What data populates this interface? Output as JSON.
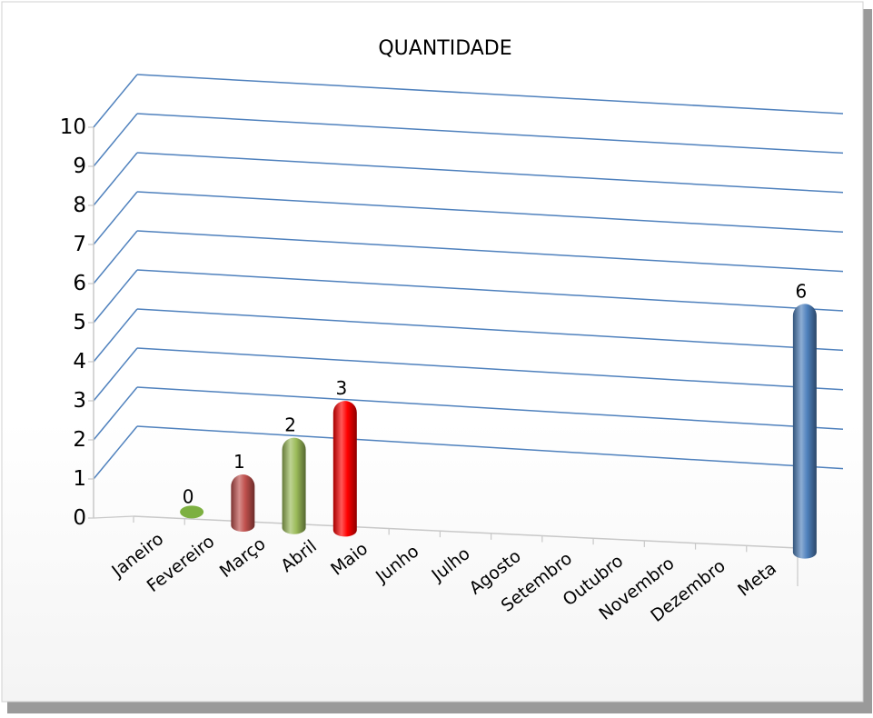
{
  "chart_data": {
    "type": "bar",
    "title": "QUANTIDADE",
    "categories": [
      "Janeiro",
      "Fevereiro",
      "Março",
      "Abril",
      "Maio",
      "Junho",
      "Julho",
      "Agosto",
      "Setembro",
      "Outubro",
      "Novembro",
      "Dezembro",
      "Meta"
    ],
    "values": [
      0,
      1,
      2,
      3,
      null,
      null,
      null,
      null,
      null,
      null,
      null,
      null,
      6
    ],
    "data_labels": [
      "0",
      "1",
      "2",
      "3",
      "",
      "",
      "",
      "",
      "",
      "",
      "",
      "",
      "6"
    ],
    "bar_colors": [
      "#7db041",
      "#c0504d",
      "#9bbb59",
      "#ff0000",
      null,
      null,
      null,
      null,
      null,
      null,
      null,
      null,
      "#4f81bd"
    ],
    "ylim": [
      0,
      10
    ],
    "yticks": [
      0,
      1,
      2,
      3,
      4,
      5,
      6,
      7,
      8,
      9,
      10
    ],
    "gridline_color": "#4f81bd",
    "grid": true,
    "legend": "none",
    "style": "3d-cylinder"
  }
}
